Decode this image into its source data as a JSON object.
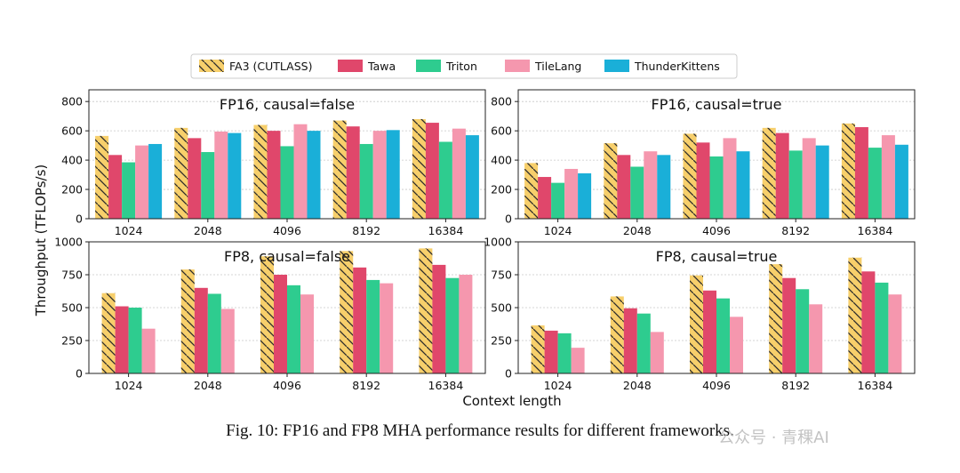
{
  "figure": {
    "ylabel": "Throughput (TFLOPs/s)",
    "xlabel": "Context length",
    "caption": "Fig. 10: FP16 and FP8 MHA performance results for different frameworks.",
    "watermark": "公众号 · 青稞AI"
  },
  "legend": [
    {
      "name": "FA3 (CUTLASS)",
      "color": "#F7CF6B",
      "hatch": true
    },
    {
      "name": "Tawa",
      "color": "#E0476B",
      "hatch": false
    },
    {
      "name": "Triton",
      "color": "#2ECC8F",
      "hatch": false
    },
    {
      "name": "TileLang",
      "color": "#F597AE",
      "hatch": false
    },
    {
      "name": "ThunderKittens",
      "color": "#1AAFD8",
      "hatch": false
    }
  ],
  "chart_data": [
    {
      "type": "bar",
      "title": "FP16, causal=false",
      "categories": [
        "1024",
        "2048",
        "4096",
        "8192",
        "16384"
      ],
      "ylim": [
        0,
        880
      ],
      "yticks": [
        0,
        200,
        400,
        600,
        800
      ],
      "series": [
        {
          "name": "FA3 (CUTLASS)",
          "values": [
            565,
            620,
            640,
            670,
            680
          ]
        },
        {
          "name": "Tawa",
          "values": [
            435,
            550,
            600,
            630,
            655
          ]
        },
        {
          "name": "Triton",
          "values": [
            385,
            455,
            495,
            510,
            525
          ]
        },
        {
          "name": "TileLang",
          "values": [
            500,
            595,
            645,
            600,
            615
          ]
        },
        {
          "name": "ThunderKittens",
          "values": [
            510,
            585,
            600,
            605,
            570
          ]
        }
      ]
    },
    {
      "type": "bar",
      "title": "FP16, causal=true",
      "categories": [
        "1024",
        "2048",
        "4096",
        "8192",
        "16384"
      ],
      "ylim": [
        0,
        880
      ],
      "yticks": [
        0,
        200,
        400,
        600,
        800
      ],
      "series": [
        {
          "name": "FA3 (CUTLASS)",
          "values": [
            380,
            515,
            580,
            620,
            650
          ]
        },
        {
          "name": "Tawa",
          "values": [
            285,
            435,
            520,
            585,
            625
          ]
        },
        {
          "name": "Triton",
          "values": [
            245,
            355,
            425,
            465,
            485
          ]
        },
        {
          "name": "TileLang",
          "values": [
            340,
            460,
            550,
            550,
            570
          ]
        },
        {
          "name": "ThunderKittens",
          "values": [
            310,
            435,
            460,
            500,
            505
          ]
        }
      ]
    },
    {
      "type": "bar",
      "title": "FP8, causal=false",
      "categories": [
        "1024",
        "2048",
        "4096",
        "8192",
        "16384"
      ],
      "ylim": [
        0,
        1000
      ],
      "yticks": [
        0,
        250,
        500,
        750,
        1000
      ],
      "series": [
        {
          "name": "FA3 (CUTLASS)",
          "values": [
            610,
            790,
            890,
            930,
            950
          ]
        },
        {
          "name": "Tawa",
          "values": [
            510,
            650,
            750,
            805,
            825
          ]
        },
        {
          "name": "Triton",
          "values": [
            500,
            605,
            670,
            710,
            725
          ]
        },
        {
          "name": "TileLang",
          "values": [
            340,
            490,
            600,
            685,
            750
          ]
        }
      ]
    },
    {
      "type": "bar",
      "title": "FP8, causal=true",
      "categories": [
        "1024",
        "2048",
        "4096",
        "8192",
        "16384"
      ],
      "ylim": [
        0,
        1000
      ],
      "yticks": [
        0,
        250,
        500,
        750,
        1000
      ],
      "series": [
        {
          "name": "FA3 (CUTLASS)",
          "values": [
            365,
            585,
            745,
            830,
            880
          ]
        },
        {
          "name": "Tawa",
          "values": [
            325,
            495,
            630,
            725,
            775
          ]
        },
        {
          "name": "Triton",
          "values": [
            305,
            455,
            570,
            640,
            690
          ]
        },
        {
          "name": "TileLang",
          "values": [
            195,
            315,
            430,
            525,
            600
          ]
        }
      ]
    }
  ]
}
